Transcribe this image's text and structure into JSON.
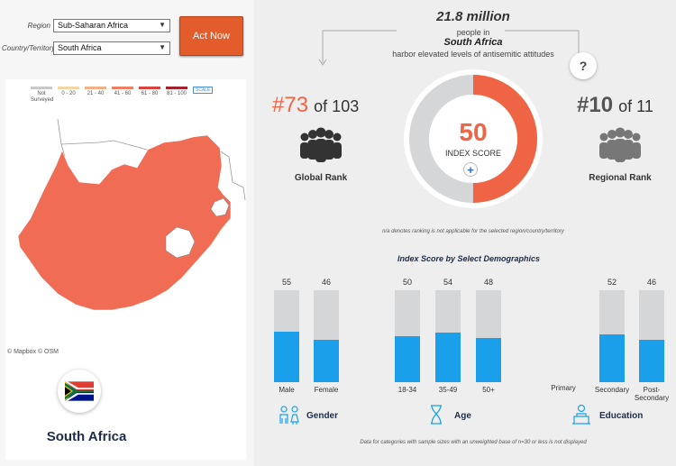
{
  "filters": {
    "region_label": "Region",
    "region_value": "Sub-Saharan Africa",
    "country_label": "Country/Territory",
    "country_value": "South Africa"
  },
  "act_button": "Act Now",
  "legend": [
    {
      "label": "Not Surveyed",
      "color": "#c9c9c9"
    },
    {
      "label": "0 - 20",
      "color": "#f2d7a4"
    },
    {
      "label": "21 - 40",
      "color": "#f3b087"
    },
    {
      "label": "41 - 60",
      "color": "#ef7f64"
    },
    {
      "label": "61 - 80",
      "color": "#d8423f"
    },
    {
      "label": "81 - 100",
      "color": "#a1232b"
    }
  ],
  "scale_icon": "SCALE",
  "map_credit": "© Mapbox © OSM",
  "map_fill": "#f06c55",
  "country_title": "South Africa",
  "headline": {
    "number": "21.8 million",
    "line1": "people in",
    "country": "South Africa",
    "line2": "harbor elevated levels of antisemitic attitudes"
  },
  "global_rank": {
    "hash": "#73",
    "of": "of 103",
    "label": "Global Rank",
    "color": "#ef6444"
  },
  "regional_rank": {
    "hash": "#10",
    "of": "of 11",
    "label": "Regional Rank",
    "color": "#555555"
  },
  "help_icon": "?",
  "index_score": {
    "value": "50",
    "label": "INDEX SCORE",
    "fraction": 0.5
  },
  "plus_icon": "+",
  "note_na": "n/a denotes ranking is not applicable for the selected region/country/territory",
  "demographics_title": "Index Score by Select Demographics",
  "bars": [
    {
      "value": 55,
      "label": "Male"
    },
    {
      "value": 46,
      "label": "Female"
    },
    {
      "value": 50,
      "label": "18-34"
    },
    {
      "value": 54,
      "label": "35-49"
    },
    {
      "value": 48,
      "label": "50+"
    },
    {
      "value": null,
      "label": "Primary"
    },
    {
      "value": 52,
      "label": "Secondary"
    },
    {
      "value": 46,
      "label": "Post-Secondary"
    }
  ],
  "groups": {
    "gender": "Gender",
    "age": "Age",
    "education": "Education"
  },
  "footer_note": "Data for categories with sample sizes with an unweighted base of n=30 or less is not displayed"
}
